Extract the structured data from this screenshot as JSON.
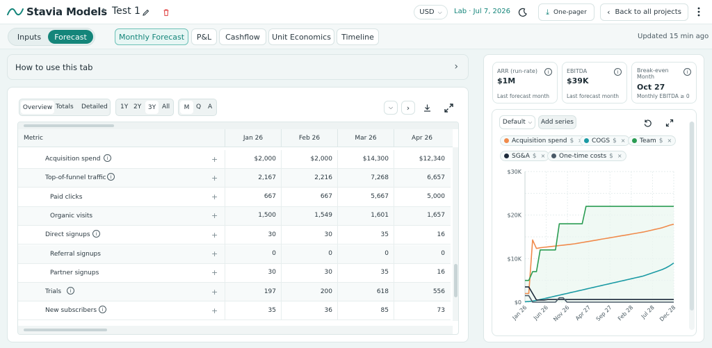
{
  "header": {
    "brand": "Stavia Models",
    "separator": "•",
    "project": "Test 1",
    "currency": "USD",
    "lab_date": "Lab · Jul 7, 2026",
    "one_pager": "One-pager",
    "back": "Back to all projects"
  },
  "mode_tabs": [
    {
      "label": "Inputs"
    },
    {
      "label": "Forecast"
    }
  ],
  "view_tabs": [
    {
      "label": "Monthly Forecast"
    },
    {
      "label": "P&L"
    },
    {
      "label": "Cashflow"
    },
    {
      "label": "Unit Economics"
    },
    {
      "label": "Timeline"
    }
  ],
  "updated": "Updated 15 min ago",
  "howto": "How to use this tab",
  "table_controls": {
    "views": [
      "Overview",
      "Totals",
      "Detailed"
    ],
    "ranges": [
      "1Y",
      "2Y",
      "3Y",
      "All"
    ],
    "grain": [
      "M",
      "Q",
      "A"
    ]
  },
  "table": {
    "metric_header": "Metric",
    "columns": [
      "Jan 26",
      "Feb 26",
      "Mar 26",
      "Apr 26"
    ],
    "rows": [
      {
        "label": "Acquisition spend",
        "values": [
          "$2,000",
          "$2,000",
          "$14,300",
          "$12,340"
        ]
      },
      {
        "label": "Top-of-funnel traffic",
        "values": [
          "2,167",
          "2,216",
          "7,268",
          "6,657"
        ]
      },
      {
        "label": "Paid clicks",
        "values": [
          "667",
          "667",
          "5,667",
          "5,000"
        ]
      },
      {
        "label": "Organic visits",
        "values": [
          "1,500",
          "1,549",
          "1,601",
          "1,657"
        ]
      },
      {
        "label": "Direct signups",
        "values": [
          "30",
          "30",
          "35",
          "16"
        ]
      },
      {
        "label": "Referral signups",
        "values": [
          "0",
          "0",
          "0",
          "0"
        ]
      },
      {
        "label": "Partner signups",
        "values": [
          "30",
          "30",
          "35",
          "16"
        ]
      },
      {
        "label": "Trials",
        "values": [
          "197",
          "200",
          "618",
          "556"
        ]
      },
      {
        "label": "New subscribers",
        "values": [
          "35",
          "36",
          "85",
          "73"
        ]
      }
    ],
    "plus": "+"
  },
  "kpis": [
    {
      "title": "ARR (run-rate)",
      "value": "$1M",
      "sub": "Last forecast month"
    },
    {
      "title": "EBITDA",
      "value": "$39K",
      "sub": "Last forecast month"
    },
    {
      "title": "Break-even Month",
      "value": "Oct 27",
      "sub": "Monthly EBITDA ≥ 0"
    }
  ],
  "chart_controls": {
    "preset": "Default",
    "add_series": "Add series"
  },
  "series_chips": [
    {
      "name": "Acquisition spend",
      "color": "#f08a4b"
    },
    {
      "name": "COGS",
      "color": "#1a9aa4"
    },
    {
      "name": "Team",
      "color": "#2a9c52"
    },
    {
      "name": "SG&A",
      "color": "#1c2a3a"
    },
    {
      "name": "One-time costs",
      "color": "#4a5a68"
    }
  ],
  "chip_suffix": "$",
  "chip_remove": "×",
  "chart_data": {
    "type": "line",
    "x_ticks": [
      "Jan 26",
      "Jun 26",
      "Nov 26",
      "Apr 27",
      "Sep 27",
      "Feb 28",
      "Jul 28",
      "Dec 28"
    ],
    "y_ticks": [
      "$0",
      "$10K",
      "$20K",
      "$30K"
    ],
    "ylim": [
      0,
      30000
    ],
    "series": [
      {
        "name": "Acquisition spend",
        "color": "#f08a4b",
        "values": [
          2000,
          2000,
          14300,
          12340,
          12500,
          12600,
          12700,
          12800,
          12900,
          13000,
          13100,
          13200,
          13300,
          13400,
          13550,
          13700,
          13850,
          14000,
          14150,
          14300,
          14450,
          14600,
          14750,
          14900,
          15050,
          15200,
          15350,
          15500,
          15650,
          15800,
          15950,
          16100,
          16300,
          16500,
          16700,
          16900,
          17100,
          17400,
          17700,
          17900
        ]
      },
      {
        "name": "COGS",
        "color": "#1a9aa4",
        "values": [
          100,
          150,
          250,
          400,
          600,
          800,
          1000,
          1200,
          1400,
          1600,
          1800,
          2000,
          2200,
          2400,
          2600,
          2800,
          3000,
          3200,
          3400,
          3600,
          3800,
          4000,
          4200,
          4400,
          4600,
          4800,
          5000,
          5200,
          5400,
          5600,
          5800,
          6000,
          6300,
          6600,
          6900,
          7200,
          7500,
          7900,
          8400,
          9000
        ]
      },
      {
        "name": "Team",
        "color": "#2a9c52",
        "values": [
          5000,
          5000,
          7000,
          7000,
          12000,
          12000,
          12000,
          12000,
          12000,
          18000,
          18000,
          18000,
          18000,
          18000,
          18000,
          18000,
          22000,
          22000,
          22000,
          22000,
          22000,
          22000,
          22000,
          22000,
          22000,
          22000,
          22000,
          22000,
          22000,
          22000,
          22000,
          22000,
          22000,
          22000,
          22000,
          22000,
          22000,
          22000,
          22000,
          22000
        ]
      },
      {
        "name": "SG&A",
        "color": "#1c2a3a",
        "values": [
          3500,
          3500,
          2000,
          500,
          500,
          500,
          600,
          600,
          600,
          600,
          600,
          600,
          600,
          600,
          600,
          600,
          600,
          600,
          600,
          600,
          600,
          600,
          600,
          600,
          600,
          600,
          600,
          600,
          600,
          600,
          600,
          600,
          600,
          600,
          600,
          600,
          600,
          600,
          600,
          600
        ]
      },
      {
        "name": "One-time costs",
        "color": "#4a5a68",
        "values": [
          1500,
          1500,
          0,
          0,
          0,
          0,
          0,
          0,
          0,
          1000,
          1000,
          0,
          0,
          0,
          0,
          0,
          0,
          0,
          0,
          0,
          0,
          0,
          0,
          0,
          0,
          0,
          0,
          0,
          0,
          0,
          0,
          0,
          0,
          0,
          0,
          0,
          0,
          0,
          0,
          0
        ]
      }
    ]
  }
}
